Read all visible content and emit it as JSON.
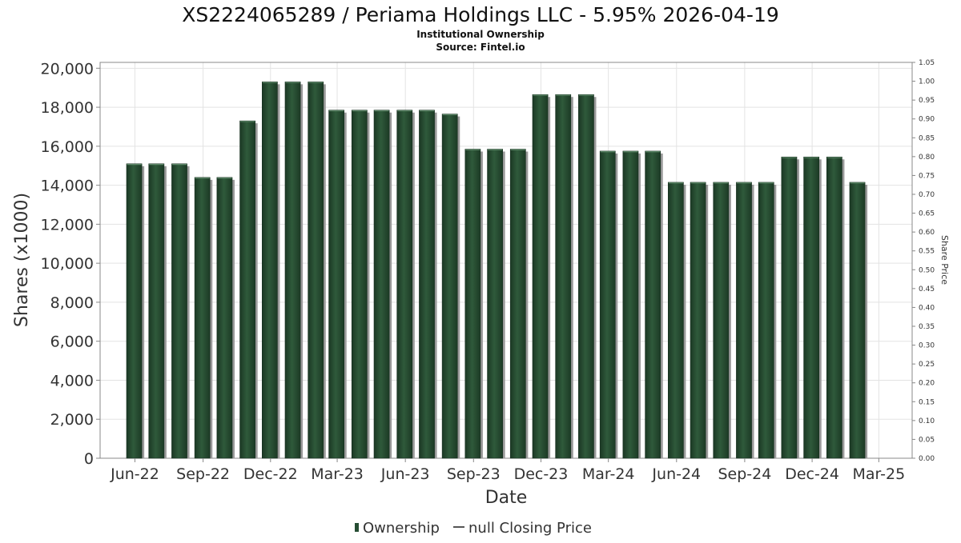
{
  "chart_data": {
    "type": "bar",
    "title": "XS2224065289 / Periama Holdings LLC - 5.95% 2026-04-19",
    "subtitle": "Institutional Ownership",
    "source": "Source: Fintel.io",
    "xlabel": "Date",
    "ylabel": "Shares (x1000)",
    "y2label": "Share Price",
    "ylim": [
      0,
      20300
    ],
    "y2lim": [
      0,
      1.05
    ],
    "x_range": [
      "2022-04-15",
      "2025-04-15"
    ],
    "yticks": [
      {
        "value": 0,
        "label": "0"
      },
      {
        "value": 2000,
        "label": "2,000"
      },
      {
        "value": 4000,
        "label": "4,000"
      },
      {
        "value": 6000,
        "label": "6,000"
      },
      {
        "value": 8000,
        "label": "8,000"
      },
      {
        "value": 10000,
        "label": "10,000"
      },
      {
        "value": 12000,
        "label": "12,000"
      },
      {
        "value": 14000,
        "label": "14,000"
      },
      {
        "value": 16000,
        "label": "16,000"
      },
      {
        "value": 18000,
        "label": "18,000"
      },
      {
        "value": 20000,
        "label": "20,000"
      }
    ],
    "y2ticks": [
      {
        "value": 0.0,
        "label": "0.00"
      },
      {
        "value": 0.05,
        "label": "0.05"
      },
      {
        "value": 0.1,
        "label": "0.10"
      },
      {
        "value": 0.15,
        "label": "0.15"
      },
      {
        "value": 0.2,
        "label": "0.20"
      },
      {
        "value": 0.25,
        "label": "0.25"
      },
      {
        "value": 0.3,
        "label": "0.30"
      },
      {
        "value": 0.35,
        "label": "0.35"
      },
      {
        "value": 0.4,
        "label": "0.40"
      },
      {
        "value": 0.45,
        "label": "0.45"
      },
      {
        "value": 0.5,
        "label": "0.50"
      },
      {
        "value": 0.55,
        "label": "0.55"
      },
      {
        "value": 0.6,
        "label": "0.60"
      },
      {
        "value": 0.65,
        "label": "0.65"
      },
      {
        "value": 0.7,
        "label": "0.70"
      },
      {
        "value": 0.75,
        "label": "0.75"
      },
      {
        "value": 0.8,
        "label": "0.80"
      },
      {
        "value": 0.85,
        "label": "0.85"
      },
      {
        "value": 0.9,
        "label": "0.90"
      },
      {
        "value": 0.95,
        "label": "0.95"
      },
      {
        "value": 1.0,
        "label": "1.00"
      },
      {
        "value": 1.05,
        "label": "1.05"
      }
    ],
    "xticks": [
      {
        "date": "2022-06-01",
        "label": "Jun-22"
      },
      {
        "date": "2022-09-01",
        "label": "Sep-22"
      },
      {
        "date": "2022-12-01",
        "label": "Dec-22"
      },
      {
        "date": "2023-03-01",
        "label": "Mar-23"
      },
      {
        "date": "2023-06-01",
        "label": "Jun-23"
      },
      {
        "date": "2023-09-01",
        "label": "Sep-23"
      },
      {
        "date": "2023-12-01",
        "label": "Dec-23"
      },
      {
        "date": "2024-03-01",
        "label": "Mar-24"
      },
      {
        "date": "2024-06-01",
        "label": "Jun-24"
      },
      {
        "date": "2024-09-01",
        "label": "Sep-24"
      },
      {
        "date": "2024-12-01",
        "label": "Dec-24"
      },
      {
        "date": "2025-03-01",
        "label": "Mar-25"
      }
    ],
    "series": [
      {
        "name": "Ownership",
        "axis": "left",
        "color": "#264d33",
        "points": [
          {
            "x": "2022-05-31",
            "y": 15100
          },
          {
            "x": "2022-06-30",
            "y": 15100
          },
          {
            "x": "2022-07-31",
            "y": 15100
          },
          {
            "x": "2022-08-31",
            "y": 14400
          },
          {
            "x": "2022-09-30",
            "y": 14400
          },
          {
            "x": "2022-10-31",
            "y": 17300
          },
          {
            "x": "2022-11-30",
            "y": 19300
          },
          {
            "x": "2022-12-31",
            "y": 19300
          },
          {
            "x": "2023-01-31",
            "y": 19300
          },
          {
            "x": "2023-02-28",
            "y": 17850
          },
          {
            "x": "2023-03-31",
            "y": 17850
          },
          {
            "x": "2023-04-30",
            "y": 17850
          },
          {
            "x": "2023-05-31",
            "y": 17850
          },
          {
            "x": "2023-06-30",
            "y": 17850
          },
          {
            "x": "2023-07-31",
            "y": 17650
          },
          {
            "x": "2023-08-31",
            "y": 15850
          },
          {
            "x": "2023-09-30",
            "y": 15850
          },
          {
            "x": "2023-10-31",
            "y": 15850
          },
          {
            "x": "2023-11-30",
            "y": 18650
          },
          {
            "x": "2023-12-31",
            "y": 18650
          },
          {
            "x": "2024-01-31",
            "y": 18650
          },
          {
            "x": "2024-02-29",
            "y": 15750
          },
          {
            "x": "2024-03-31",
            "y": 15750
          },
          {
            "x": "2024-04-30",
            "y": 15750
          },
          {
            "x": "2024-05-31",
            "y": 14150
          },
          {
            "x": "2024-06-30",
            "y": 14150
          },
          {
            "x": "2024-07-31",
            "y": 14150
          },
          {
            "x": "2024-08-31",
            "y": 14150
          },
          {
            "x": "2024-09-30",
            "y": 14150
          },
          {
            "x": "2024-10-31",
            "y": 15450
          },
          {
            "x": "2024-11-30",
            "y": 15450
          },
          {
            "x": "2024-12-31",
            "y": 15450
          },
          {
            "x": "2025-01-31",
            "y": 14150
          }
        ]
      },
      {
        "name": "null Closing Price",
        "axis": "right",
        "color": "#555555",
        "points": []
      }
    ],
    "grid": true,
    "legend": "bottom-center"
  }
}
